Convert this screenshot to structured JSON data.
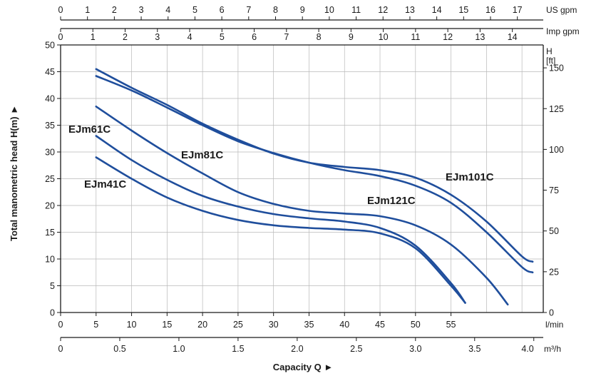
{
  "chart_data": {
    "type": "line",
    "title": "",
    "xlabel": "Capacity Q ►",
    "ylabel": "Total manometric head H(m) ►",
    "grid": true,
    "line_color": "#1f4e9c",
    "x_unit": "l/min",
    "xlim": [
      0,
      68
    ],
    "ylim": [
      0,
      50
    ],
    "axes": {
      "lmin": {
        "unit": "l/min",
        "ticks": [
          "0",
          "5",
          "10",
          "15",
          "20",
          "25",
          "30",
          "35",
          "40",
          "45",
          "50",
          "55"
        ]
      },
      "m3h": {
        "unit": "m³/h",
        "ticks": [
          "0",
          "0.5",
          "1.0",
          "1.5",
          "2.0",
          "2.5",
          "3.0",
          "3.5",
          "4.0"
        ]
      },
      "us_gpm": {
        "unit": "US gpm",
        "ticks": [
          "0",
          "1",
          "2",
          "3",
          "4",
          "5",
          "6",
          "7",
          "8",
          "9",
          "10",
          "11",
          "12",
          "13",
          "14",
          "15",
          "16",
          "17"
        ]
      },
      "imp_gpm": {
        "unit": "Imp gpm",
        "ticks": [
          "0",
          "1",
          "2",
          "3",
          "4",
          "5",
          "6",
          "7",
          "8",
          "9",
          "10",
          "11",
          "12",
          "13",
          "14"
        ]
      },
      "head_m": {
        "ticks": [
          "0",
          "5",
          "10",
          "15",
          "20",
          "25",
          "30",
          "35",
          "40",
          "45",
          "50"
        ]
      },
      "head_ft": {
        "unit_line1": "H",
        "unit_line2": "[ft]",
        "ticks": [
          "0",
          "25",
          "50",
          "75",
          "100",
          "125",
          "150"
        ]
      }
    },
    "series": [
      {
        "name": "EJm41C",
        "points": [
          [
            5,
            29
          ],
          [
            10,
            25
          ],
          [
            15,
            21.5
          ],
          [
            20,
            19
          ],
          [
            25,
            17.3
          ],
          [
            30,
            16.3
          ],
          [
            35,
            15.8
          ],
          [
            40,
            15.5
          ],
          [
            45,
            14.8
          ],
          [
            50,
            12
          ],
          [
            55,
            5
          ],
          [
            57,
            1.8
          ]
        ]
      },
      {
        "name": "EJm61C",
        "points": [
          [
            5,
            33
          ],
          [
            10,
            28.5
          ],
          [
            15,
            24.8
          ],
          [
            20,
            21.8
          ],
          [
            25,
            19.8
          ],
          [
            30,
            18.4
          ],
          [
            35,
            17.6
          ],
          [
            40,
            17
          ],
          [
            45,
            15.8
          ],
          [
            50,
            12.5
          ],
          [
            55,
            5.5
          ],
          [
            57,
            1.8
          ]
        ]
      },
      {
        "name": "EJm81C",
        "points": [
          [
            5,
            38.5
          ],
          [
            10,
            34
          ],
          [
            15,
            29.8
          ],
          [
            20,
            26
          ],
          [
            25,
            22.5
          ],
          [
            30,
            20.3
          ],
          [
            35,
            19
          ],
          [
            40,
            18.5
          ],
          [
            45,
            18
          ],
          [
            50,
            16.3
          ],
          [
            55,
            12.7
          ],
          [
            60,
            6.5
          ],
          [
            63,
            1.5
          ]
        ]
      },
      {
        "name": "EJm121C",
        "points": [
          [
            5,
            44.2
          ],
          [
            10,
            41.5
          ],
          [
            15,
            38.3
          ],
          [
            20,
            35
          ],
          [
            25,
            32
          ],
          [
            30,
            29.8
          ],
          [
            35,
            28
          ],
          [
            40,
            26.6
          ],
          [
            45,
            25.5
          ],
          [
            50,
            23.7
          ],
          [
            55,
            20.5
          ],
          [
            60,
            15
          ],
          [
            65,
            8.5
          ],
          [
            66.5,
            7.5
          ]
        ]
      },
      {
        "name": "EJm101C",
        "points": [
          [
            5,
            45.5
          ],
          [
            10,
            42
          ],
          [
            15,
            38.8
          ],
          [
            20,
            35.3
          ],
          [
            25,
            32.3
          ],
          [
            30,
            29.7
          ],
          [
            35,
            28
          ],
          [
            40,
            27.2
          ],
          [
            45,
            26.6
          ],
          [
            50,
            25.2
          ],
          [
            55,
            22
          ],
          [
            60,
            17
          ],
          [
            65,
            10.5
          ],
          [
            66.5,
            9.5
          ]
        ]
      }
    ]
  }
}
